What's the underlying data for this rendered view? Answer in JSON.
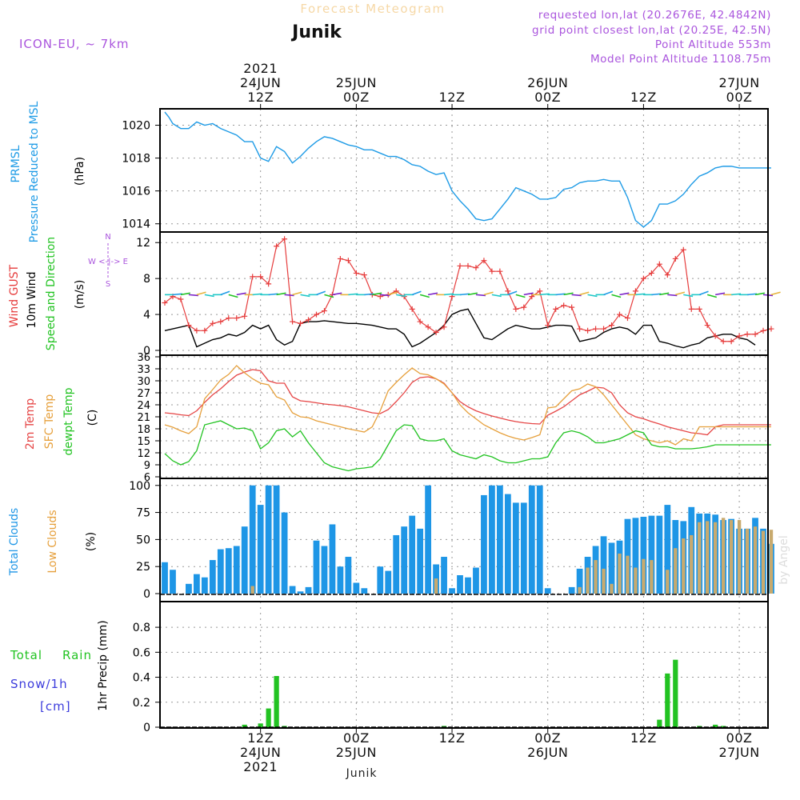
{
  "header": {
    "title": "Forecast Meteogram",
    "location": "Junik",
    "model": "ICON-EU, ~ 7km",
    "requested": "requested lon,lat (20.2676E, 42.4842N)",
    "grid": "grid point closest lon,lat (20.25E, 42.5N)",
    "altitude": "Point Altitude 553m",
    "model_altitude": "Model Point Altitude 1108.75m",
    "watermark": "by Angel",
    "footer": "Junik"
  },
  "colors": {
    "pressure": "#1e9be6",
    "gust": "#e63c3c",
    "wind": "#000000",
    "temp2m": "#e64646",
    "sfc": "#e6a03c",
    "dewpt": "#22c322",
    "total_cloud": "#1e96e6",
    "low_cloud": "#c8aa6e",
    "rain": "#22c322",
    "snow": "#3c3cdc",
    "purple": "#aa55dd"
  },
  "time_axis": {
    "top": [
      {
        "h": 12,
        "lines": [
          "2021",
          "24JUN",
          "12Z"
        ]
      },
      {
        "h": 24,
        "lines": [
          "25JUN",
          "00Z"
        ]
      },
      {
        "h": 36,
        "lines": [
          "12Z"
        ]
      },
      {
        "h": 48,
        "lines": [
          "26JUN",
          "00Z"
        ]
      },
      {
        "h": 60,
        "lines": [
          "12Z"
        ]
      },
      {
        "h": 72,
        "lines": [
          "27JUN",
          "00Z"
        ]
      }
    ],
    "bottom": [
      {
        "h": 12,
        "lines": [
          "12Z",
          "24JUN",
          "2021"
        ]
      },
      {
        "h": 24,
        "lines": [
          "00Z",
          "25JUN"
        ]
      },
      {
        "h": 36,
        "lines": [
          "12Z"
        ]
      },
      {
        "h": 48,
        "lines": [
          "00Z",
          "26JUN"
        ]
      },
      {
        "h": 60,
        "lines": [
          "12Z"
        ]
      },
      {
        "h": 72,
        "lines": [
          "00Z",
          "27JUN"
        ]
      }
    ]
  },
  "panel_labels": {
    "pressure": [
      "PRMSL",
      "Pressure Reduced to MSL",
      "(hPa)"
    ],
    "wind": [
      "Wind GUST",
      "10m Wind",
      "Speed and Direction",
      "(m/s)"
    ],
    "compass": {
      "n": "N",
      "s": "S",
      "axis": "W <-|-> E"
    },
    "temp": [
      "2m Temp",
      "SFC Temp",
      "dewpt Temp",
      "(C)"
    ],
    "cloud": [
      "Total Clouds",
      "Low Clouds",
      "(%)"
    ],
    "precip": [
      "Total",
      "Rain",
      "Snow/1h",
      "[cm]",
      "1hr Precip (mm)"
    ]
  },
  "chart_data": [
    {
      "type": "line",
      "name": "PRMSL",
      "ylabel": "Pressure Reduced to MSL (hPa)",
      "x_hours": [
        0,
        0.5,
        1,
        2,
        3,
        4,
        5,
        6,
        7,
        8,
        9,
        10,
        11,
        12,
        13,
        14,
        15,
        16,
        17,
        18,
        19,
        20,
        21,
        22,
        23,
        24,
        25,
        26,
        27,
        28,
        29,
        30,
        31,
        32,
        33,
        34,
        35,
        36,
        37,
        38,
        39,
        40,
        41,
        42,
        43,
        44,
        45,
        46,
        47,
        48,
        49,
        50,
        51,
        52,
        53,
        54,
        55,
        56,
        57,
        58,
        59,
        60,
        61,
        62,
        63,
        64,
        65,
        66,
        67,
        68,
        69,
        70,
        71,
        72,
        73,
        74,
        75,
        76
      ],
      "values": [
        1020.8,
        1020.5,
        1020.1,
        1019.8,
        1019.8,
        1020.2,
        1020.0,
        1020.1,
        1019.8,
        1019.6,
        1019.4,
        1019.0,
        1019.0,
        1018.0,
        1017.8,
        1018.7,
        1018.4,
        1017.7,
        1018.1,
        1018.6,
        1019.0,
        1019.3,
        1019.2,
        1019.0,
        1018.8,
        1018.7,
        1018.5,
        1018.5,
        1018.3,
        1018.1,
        1018.1,
        1017.9,
        1017.6,
        1017.5,
        1017.2,
        1017.0,
        1017.1,
        1016.0,
        1015.4,
        1014.9,
        1014.3,
        1014.2,
        1014.3,
        1014.9,
        1015.5,
        1016.2,
        1016.0,
        1015.8,
        1015.5,
        1015.5,
        1015.6,
        1016.1,
        1016.2,
        1016.5,
        1016.6,
        1016.6,
        1016.7,
        1016.6,
        1016.6,
        1015.6,
        1014.2,
        1013.8,
        1014.2,
        1015.2,
        1015.2,
        1015.4,
        1015.8,
        1016.4,
        1016.9,
        1017.1,
        1017.4,
        1017.5,
        1017.5,
        1017.4,
        1017.4,
        1017.4,
        1017.4,
        1017.4
      ],
      "ylim": [
        1013.5,
        1021.0
      ],
      "ticks": [
        1014,
        1016,
        1018,
        1020
      ]
    },
    {
      "type": "line",
      "name": "Wind",
      "ylabel": "(m/s)",
      "x_hours": [
        0,
        1,
        2,
        3,
        4,
        5,
        6,
        7,
        8,
        9,
        10,
        11,
        12,
        13,
        14,
        15,
        16,
        17,
        18,
        19,
        20,
        21,
        22,
        23,
        24,
        25,
        26,
        27,
        28,
        29,
        30,
        31,
        32,
        33,
        34,
        35,
        36,
        37,
        38,
        39,
        40,
        41,
        42,
        43,
        44,
        45,
        46,
        47,
        48,
        49,
        50,
        51,
        52,
        53,
        54,
        55,
        56,
        57,
        58,
        59,
        60,
        61,
        62,
        63,
        64,
        65,
        66,
        67,
        68,
        69,
        70,
        71,
        72,
        73,
        74,
        75,
        76
      ],
      "series": [
        {
          "name": "Wind GUST",
          "values": [
            5.3,
            6.0,
            5.7,
            2.8,
            2.2,
            2.2,
            3.0,
            3.2,
            3.6,
            3.6,
            3.8,
            8.2,
            8.2,
            7.4,
            11.6,
            12.4,
            3.2,
            3.0,
            3.4,
            4.0,
            4.4,
            6.2,
            10.2,
            10.0,
            8.6,
            8.4,
            6.2,
            6.0,
            6.2,
            6.6,
            6.0,
            4.6,
            3.2,
            2.6,
            2.0,
            2.6,
            6.0,
            9.4,
            9.4,
            9.2,
            10.0,
            8.8,
            8.8,
            6.6,
            4.6,
            4.8,
            6.0,
            6.6,
            2.8,
            4.6,
            5.0,
            4.8,
            2.4,
            2.2,
            2.4,
            2.4,
            2.8,
            4.0,
            3.6,
            6.6,
            8.0,
            8.6,
            9.6,
            8.4,
            10.2,
            11.2,
            4.6,
            4.6,
            2.8,
            1.6,
            1.0,
            1.0,
            1.6,
            1.8,
            1.8,
            2.2,
            2.4
          ]
        },
        {
          "name": "10m Wind",
          "values": [
            2.2,
            2.4,
            2.6,
            2.8,
            0.4,
            0.8,
            1.2,
            1.4,
            1.8,
            1.6,
            2.0,
            2.8,
            2.4,
            2.8,
            1.2,
            0.6,
            1.0,
            3.0,
            3.2,
            3.2,
            3.3,
            3.2,
            3.1,
            3.0,
            3.0,
            2.9,
            2.8,
            2.6,
            2.4,
            2.4,
            1.8,
            0.4,
            0.8,
            1.4,
            2.0,
            2.8,
            4.0,
            4.4,
            4.6,
            3.0,
            1.4,
            1.2,
            1.8,
            2.4,
            2.8,
            2.6,
            2.4,
            2.4,
            2.6,
            2.8,
            2.8,
            2.7,
            1.0,
            1.2,
            1.4,
            2.0,
            2.4,
            2.6,
            2.4,
            1.8,
            2.8,
            2.8,
            1.0,
            0.8,
            0.5,
            0.3,
            0.6,
            0.8,
            1.4,
            1.6,
            1.8,
            1.8,
            1.4,
            1.2,
            0.6
          ]
        }
      ],
      "ylim": [
        0,
        13
      ],
      "ticks": [
        0,
        4,
        8,
        12
      ]
    },
    {
      "type": "line",
      "name": "Temperature",
      "ylabel": "(C)",
      "x_hours": [
        0,
        1,
        2,
        3,
        4,
        5,
        6,
        7,
        8,
        9,
        10,
        11,
        12,
        13,
        14,
        15,
        16,
        17,
        18,
        19,
        20,
        21,
        22,
        23,
        24,
        25,
        26,
        27,
        28,
        29,
        30,
        31,
        32,
        33,
        34,
        35,
        36,
        37,
        38,
        39,
        40,
        41,
        42,
        43,
        44,
        45,
        46,
        47,
        48,
        49,
        50,
        51,
        52,
        53,
        54,
        55,
        56,
        57,
        58,
        59,
        60,
        61,
        62,
        63,
        64,
        65,
        66,
        67,
        68,
        69,
        70,
        71,
        72,
        73,
        74,
        75,
        76
      ],
      "series": [
        {
          "name": "2m Temp",
          "values": [
            22.0,
            21.8,
            21.5,
            21.3,
            22.5,
            24.6,
            26.5,
            28.0,
            29.8,
            31.4,
            32.2,
            32.8,
            32.5,
            30.0,
            29.4,
            29.4,
            26.0,
            25.0,
            24.8,
            24.5,
            24.2,
            24.0,
            23.8,
            23.5,
            23.0,
            22.5,
            22.0,
            21.8,
            22.8,
            24.8,
            27.0,
            29.6,
            30.8,
            31.0,
            30.5,
            29.4,
            27.0,
            24.8,
            23.5,
            22.5,
            21.8,
            21.2,
            20.7,
            20.2,
            19.8,
            19.5,
            19.3,
            19.2,
            21.4,
            22.4,
            23.5,
            25.0,
            26.5,
            27.4,
            28.4,
            28.2,
            27.0,
            24.0,
            22.0,
            21.0,
            20.5,
            19.8,
            19.2,
            18.5,
            18.0,
            17.5,
            17.0,
            16.8,
            16.5,
            18.5,
            19.0,
            19.0,
            19.0,
            19.0,
            19.0,
            19.0,
            19.0
          ]
        },
        {
          "name": "SFC Temp",
          "values": [
            19.0,
            18.4,
            17.5,
            16.8,
            18.5,
            25.5,
            27.8,
            30.2,
            31.6,
            33.8,
            32.0,
            30.5,
            29.4,
            29.0,
            26.0,
            25.2,
            22.0,
            21.0,
            20.8,
            20.0,
            19.5,
            19.0,
            18.5,
            18.0,
            17.6,
            17.2,
            18.5,
            22.5,
            27.5,
            29.6,
            31.5,
            33.2,
            31.8,
            31.5,
            30.5,
            29.2,
            27.0,
            24.0,
            22.0,
            20.5,
            19.0,
            18.0,
            17.0,
            16.2,
            15.6,
            15.2,
            15.8,
            16.5,
            23.2,
            23.5,
            25.5,
            27.5,
            28.0,
            29.2,
            28.5,
            26.5,
            24.0,
            21.5,
            19.0,
            16.5,
            15.5,
            15.0,
            14.5,
            15.0,
            14.0,
            15.5,
            15.0,
            18.5,
            18.5,
            18.5,
            18.5,
            18.5,
            18.5,
            18.5,
            18.5,
            18.5,
            18.5
          ]
        },
        {
          "name": "dewpt Temp",
          "values": [
            11.8,
            10.0,
            9.0,
            9.8,
            12.5,
            19.0,
            19.5,
            20.0,
            19.0,
            18.0,
            18.2,
            17.5,
            13.0,
            14.5,
            17.5,
            18.0,
            16.0,
            17.5,
            14.5,
            12.0,
            9.5,
            8.5,
            8.0,
            7.5,
            8.0,
            8.2,
            8.5,
            10.5,
            14.0,
            17.5,
            19.0,
            18.8,
            15.5,
            15.0,
            15.0,
            15.5,
            12.5,
            11.5,
            11.0,
            10.5,
            11.5,
            11.0,
            10.0,
            9.5,
            9.5,
            10.0,
            10.5,
            10.5,
            11.0,
            14.5,
            17.0,
            17.5,
            17.0,
            16.0,
            14.5,
            14.5,
            15.0,
            15.5,
            16.5,
            17.5,
            17.0,
            14.0,
            13.5,
            13.5,
            13.0,
            13.0,
            13.0,
            13.2,
            13.5,
            14.0,
            14.0,
            14.0,
            14.0,
            14.0,
            14.0,
            14.0,
            14.0
          ]
        }
      ],
      "ylim": [
        6,
        36
      ],
      "ticks": [
        6,
        9,
        12,
        15,
        18,
        21,
        24,
        27,
        30,
        33,
        36
      ]
    },
    {
      "type": "bar",
      "name": "Clouds",
      "ylabel": "(%)",
      "x_hours": [
        0,
        1,
        2,
        3,
        4,
        5,
        6,
        7,
        8,
        9,
        10,
        11,
        12,
        13,
        14,
        15,
        16,
        17,
        18,
        19,
        20,
        21,
        22,
        23,
        24,
        25,
        26,
        27,
        28,
        29,
        30,
        31,
        32,
        33,
        34,
        35,
        36,
        37,
        38,
        39,
        40,
        41,
        42,
        43,
        44,
        45,
        46,
        47,
        48,
        49,
        50,
        51,
        52,
        53,
        54,
        55,
        56,
        57,
        58,
        59,
        60,
        61,
        62,
        63,
        64,
        65,
        66,
        67,
        68,
        69,
        70,
        71,
        72,
        73,
        74,
        75,
        76
      ],
      "series": [
        {
          "name": "Total Clouds",
          "values": [
            29,
            22,
            0,
            9,
            18,
            15,
            31,
            41,
            42,
            44,
            62,
            100,
            82,
            100,
            100,
            75,
            7,
            2,
            6,
            49,
            44,
            64,
            25,
            34,
            10,
            5,
            0,
            25,
            21,
            54,
            62,
            72,
            60,
            100,
            27,
            34,
            5,
            17,
            15,
            24,
            91,
            100,
            100,
            92,
            84,
            84,
            100,
            100,
            5,
            0,
            0,
            6,
            23,
            34,
            44,
            53,
            47,
            49,
            69,
            70,
            71,
            72,
            72,
            82,
            68,
            67,
            80,
            74,
            74,
            73,
            68,
            69,
            60,
            60,
            70,
            60,
            46
          ]
        },
        {
          "name": "Low Clouds",
          "values": [
            0,
            0,
            0,
            0,
            0,
            0,
            0,
            0,
            0,
            0,
            0,
            7,
            0,
            0,
            0,
            0,
            0,
            0,
            0,
            0,
            0,
            0,
            0,
            0,
            0,
            0,
            0,
            0,
            0,
            0,
            0,
            0,
            0,
            0,
            14,
            0,
            0,
            0,
            0,
            0,
            0,
            0,
            0,
            0,
            0,
            0,
            0,
            0,
            0,
            0,
            0,
            0,
            6,
            24,
            31,
            23,
            9,
            37,
            35,
            24,
            32,
            31,
            0,
            22,
            42,
            51,
            54,
            66,
            67,
            66,
            70,
            68,
            68,
            60,
            62,
            58,
            59
          ]
        }
      ],
      "ylim": [
        0,
        105
      ],
      "ticks": [
        0,
        25,
        50,
        75,
        100
      ]
    },
    {
      "type": "bar",
      "name": "1hr Precip",
      "ylabel": "1hr Precip (mm)",
      "series": [
        {
          "name": "Total Rain",
          "points": [
            [
              10,
              0.02
            ],
            [
              12,
              0.03
            ],
            [
              13,
              0.15
            ],
            [
              14,
              0.41
            ],
            [
              15,
              0.01
            ],
            [
              35,
              0.01
            ],
            [
              62,
              0.06
            ],
            [
              63,
              0.43
            ],
            [
              64,
              0.54
            ],
            [
              67,
              0.01
            ],
            [
              69,
              0.02
            ],
            [
              70,
              0.01
            ]
          ]
        },
        {
          "name": "Snow/1h",
          "points": []
        }
      ],
      "ylim": [
        0,
        0.98
      ],
      "ticks": [
        0,
        0.2,
        0.4,
        0.6,
        0.8
      ]
    }
  ]
}
